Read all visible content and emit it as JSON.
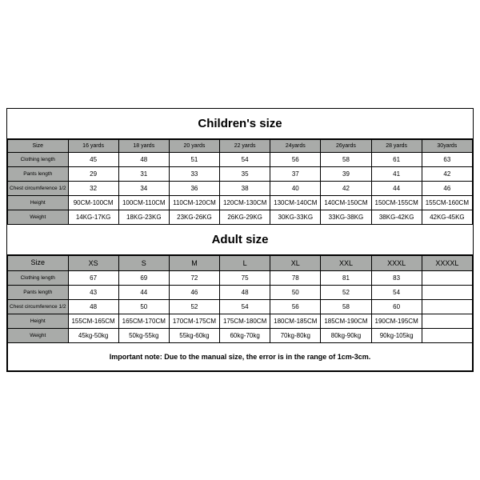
{
  "children": {
    "title": "Children's size",
    "row_labels": [
      "Size",
      "Clothing length",
      "Pants length",
      "Chest circumference 1/2",
      "Height",
      "Weight"
    ],
    "columns": [
      "16 yards",
      "18 yards",
      "20 yards",
      "22 yards",
      "24yards",
      "26yards",
      "28 yards",
      "30yards"
    ],
    "rows": [
      [
        "45",
        "48",
        "51",
        "54",
        "56",
        "58",
        "61",
        "63"
      ],
      [
        "29",
        "31",
        "33",
        "35",
        "37",
        "39",
        "41",
        "42"
      ],
      [
        "32",
        "34",
        "36",
        "38",
        "40",
        "42",
        "44",
        "46"
      ],
      [
        "90CM-100CM",
        "100CM-110CM",
        "110CM-120CM",
        "120CM-130CM",
        "130CM-140CM",
        "140CM-150CM",
        "150CM-155CM",
        "155CM-160CM"
      ],
      [
        "14KG-17KG",
        "18KG-23KG",
        "23KG-26KG",
        "26KG-29KG",
        "30KG-33KG",
        "33KG-38KG",
        "38KG-42KG",
        "42KG-45KG"
      ]
    ]
  },
  "adult": {
    "title": "Adult size",
    "row_labels": [
      "Size",
      "Clothing length",
      "Pants length",
      "Chest circumference 1/2",
      "Height",
      "Weight"
    ],
    "columns": [
      "XS",
      "S",
      "M",
      "L",
      "XL",
      "XXL",
      "XXXL",
      "XXXXL"
    ],
    "rows": [
      [
        "67",
        "69",
        "72",
        "75",
        "78",
        "81",
        "83",
        ""
      ],
      [
        "43",
        "44",
        "46",
        "48",
        "50",
        "52",
        "54",
        ""
      ],
      [
        "48",
        "50",
        "52",
        "54",
        "56",
        "58",
        "60",
        ""
      ],
      [
        "155CM-165CM",
        "165CM-170CM",
        "170CM-175CM",
        "175CM-180CM",
        "180CM-185CM",
        "185CM-190CM",
        "190CM-195CM",
        ""
      ],
      [
        "45kg-50kg",
        "50kg-55kg",
        "55kg-60kg",
        "60kg-70kg",
        "70kg-80kg",
        "80kg-90kg",
        "90kg-105kg",
        ""
      ]
    ]
  },
  "note": "Important note: Due to the manual size, the error is in the range of 1cm-3cm.",
  "style": {
    "header_bg": "#a9aba9",
    "border_color": "#000000",
    "title_fontsize": 15,
    "cell_fontsize": 8
  }
}
